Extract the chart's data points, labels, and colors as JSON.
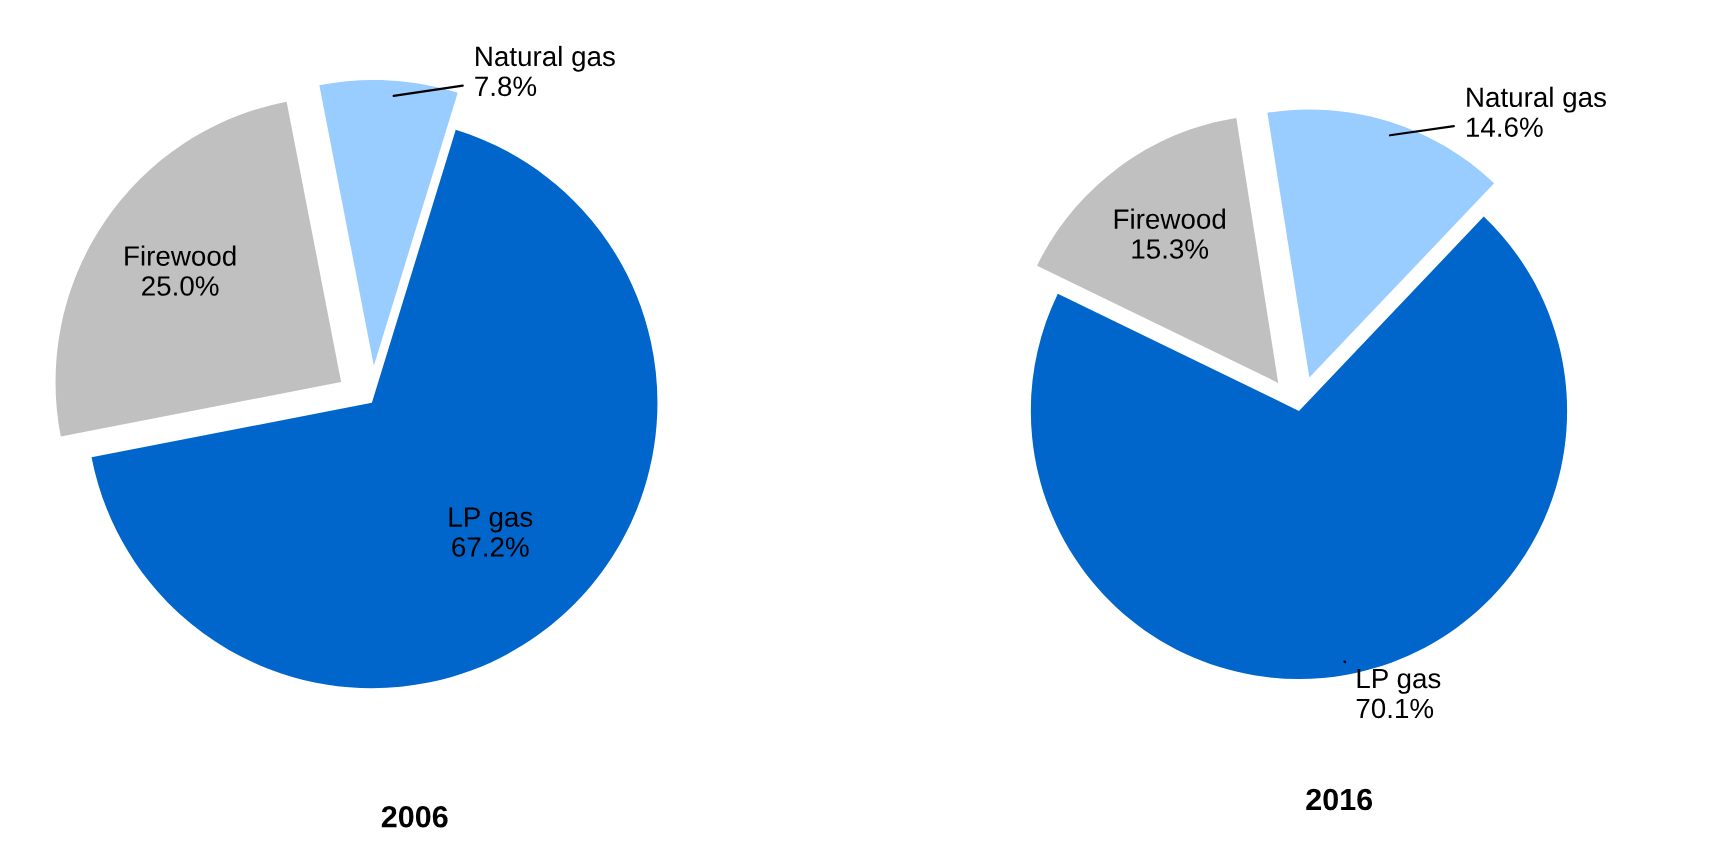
{
  "chart_data": [
    {
      "type": "pie",
      "title": "2006",
      "categories": [
        "Natural gas",
        "LP gas",
        "Firewood"
      ],
      "values": [
        7.8,
        67.2,
        25.0
      ],
      "value_labels": [
        "7.8%",
        "67.2%",
        "25.0%"
      ],
      "colors": [
        "#99ccff",
        "#0066cc",
        "#c0c0c0"
      ]
    },
    {
      "type": "pie",
      "title": "2016",
      "categories": [
        "Natural gas",
        "LP gas",
        "Firewood"
      ],
      "values": [
        14.6,
        70.1,
        15.3
      ],
      "value_labels": [
        "14.6%",
        "70.1%",
        "15.3%"
      ],
      "colors": [
        "#99ccff",
        "#0066cc",
        "#c0c0c0"
      ]
    }
  ]
}
